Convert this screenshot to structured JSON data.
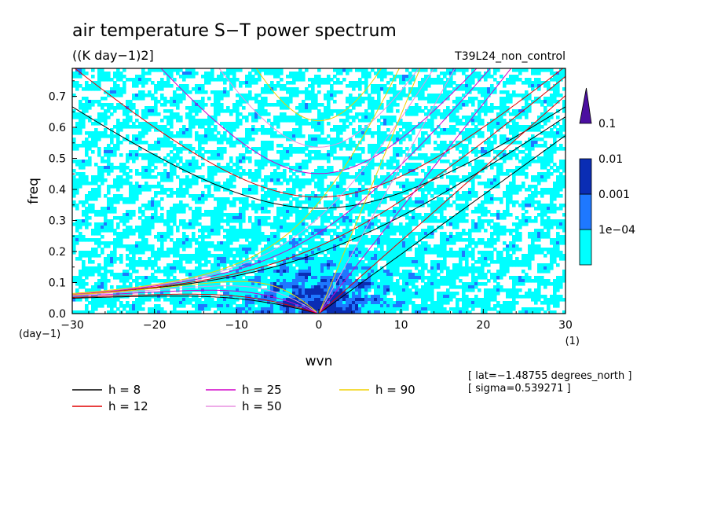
{
  "chart_data": {
    "type": "heatmap",
    "title": "air temperature S−T power spectrum",
    "units": "((K day−1)2]",
    "run_label": "T39L24_non_control",
    "xlabel": "wvn",
    "ylabel": "freq",
    "x_unit": "(1)",
    "y_unit": "(day−1)",
    "xlim": [
      -30,
      30
    ],
    "ylim": [
      0,
      0.79
    ],
    "x_ticks": [
      -30,
      -20,
      -10,
      0,
      10,
      20,
      30
    ],
    "x_tick_labels": [
      "−30",
      "−20",
      "−10",
      "0",
      "10",
      "20",
      "30"
    ],
    "y_ticks": [
      0,
      0.1,
      0.2,
      0.3,
      0.4,
      0.5,
      0.6,
      0.7
    ],
    "y_tick_labels": [
      "0.0",
      "0.1",
      "0.2",
      "0.3",
      "0.4",
      "0.5",
      "0.6",
      "0.7"
    ],
    "colorbar": {
      "levels": [
        0.0001,
        0.001,
        0.01,
        0.1
      ],
      "labels": [
        "1e−04",
        "0.001",
        "0.01",
        "0.1"
      ],
      "colors": [
        "#00ffff",
        "#1e78ff",
        "#0a2db4",
        "#4b0fa0"
      ],
      "extend": "max"
    },
    "dispersion_curves": [
      {
        "h": 8,
        "label": "h = 8",
        "color": "#000000"
      },
      {
        "h": 12,
        "label": "h = 12",
        "color": "#e00000"
      },
      {
        "h": 25,
        "label": "h = 25",
        "color": "#d000c8"
      },
      {
        "h": 50,
        "label": "h = 50",
        "color": "#e890e0"
      },
      {
        "h": 90,
        "label": "h = 90",
        "color": "#f0d000"
      }
    ],
    "annotations": [
      "[ lat=−1.48755 degrees_north ]",
      "[ sigma=0.539271 ]"
    ]
  }
}
